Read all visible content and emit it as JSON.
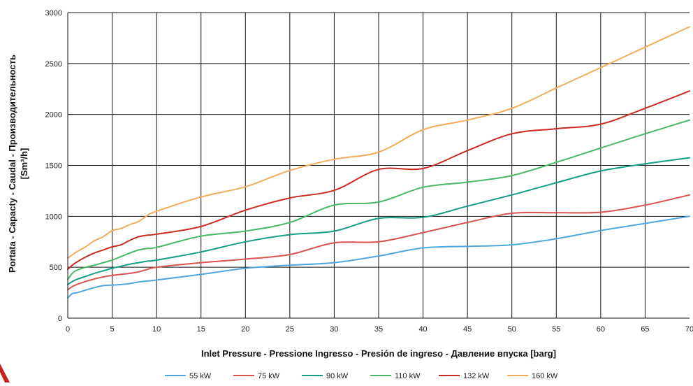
{
  "chart_data": {
    "type": "line",
    "title": "",
    "xlabel": "Inlet Pressure - Pressione Ingresso - Presión de ingreso - Давление впуска [barg]",
    "ylabel_line1": "Portata - Capacty - Caudal - Производительность",
    "ylabel_line2": "[Sm³/h]",
    "xlim": [
      0,
      70
    ],
    "ylim": [
      0,
      3000
    ],
    "x_ticks": [
      0,
      5,
      10,
      15,
      20,
      25,
      30,
      35,
      40,
      45,
      50,
      55,
      60,
      65,
      70
    ],
    "x_tick_labels": [
      "0",
      "5",
      "10",
      "15",
      "20",
      "25",
      "30",
      "35",
      "40",
      "45",
      "50",
      "55",
      "60",
      "65",
      "70"
    ],
    "y_ticks": [
      0,
      500,
      1000,
      1500,
      2000,
      2500,
      3000
    ],
    "y_tick_labels": [
      "0",
      "500",
      "1000",
      "1500",
      "2000",
      "2500",
      "3000"
    ],
    "grid": true,
    "legend_position": "bottom",
    "series": [
      {
        "name": "55 kW",
        "color": "#4ea8de",
        "x": [
          0,
          0.5,
          1,
          2,
          3,
          4,
          5,
          6,
          7,
          8,
          9,
          10,
          15,
          20,
          25,
          30,
          35,
          40,
          45,
          50,
          55,
          60,
          65,
          70
        ],
        "y": [
          200,
          240,
          250,
          275,
          300,
          320,
          325,
          330,
          340,
          355,
          365,
          375,
          430,
          490,
          520,
          545,
          610,
          690,
          705,
          720,
          780,
          860,
          930,
          1000
        ]
      },
      {
        "name": "75 kW",
        "color": "#d9534f",
        "x": [
          0,
          0.5,
          1,
          2,
          3,
          4,
          5,
          6,
          7,
          8,
          9,
          10,
          15,
          20,
          25,
          30,
          35,
          40,
          45,
          50,
          55,
          60,
          65,
          70
        ],
        "y": [
          280,
          310,
          330,
          360,
          385,
          405,
          420,
          430,
          440,
          455,
          480,
          500,
          545,
          580,
          625,
          740,
          750,
          840,
          940,
          1030,
          1035,
          1040,
          1110,
          1210
        ]
      },
      {
        "name": "90 kW",
        "color": "#139e86",
        "x": [
          0,
          0.5,
          1,
          2,
          3,
          4,
          5,
          6,
          7,
          8,
          9,
          10,
          15,
          20,
          25,
          30,
          35,
          40,
          45,
          50,
          55,
          60,
          65,
          70
        ],
        "y": [
          330,
          360,
          380,
          410,
          440,
          465,
          490,
          510,
          530,
          545,
          560,
          570,
          650,
          750,
          820,
          855,
          980,
          990,
          1100,
          1210,
          1330,
          1445,
          1515,
          1575
        ]
      },
      {
        "name": "110 kW",
        "color": "#45b964",
        "x": [
          0,
          0.5,
          1,
          2,
          3,
          4,
          5,
          6,
          7,
          8,
          9,
          10,
          15,
          20,
          25,
          30,
          35,
          40,
          45,
          50,
          55,
          60,
          65,
          70
        ],
        "y": [
          380,
          440,
          470,
          500,
          520,
          545,
          570,
          605,
          640,
          670,
          685,
          695,
          805,
          855,
          940,
          1110,
          1140,
          1285,
          1335,
          1400,
          1530,
          1670,
          1810,
          1945
        ]
      },
      {
        "name": "132 kW",
        "color": "#cc2b21",
        "x": [
          0,
          0.5,
          1,
          2,
          3,
          4,
          5,
          6,
          7,
          8,
          9,
          10,
          15,
          20,
          25,
          30,
          35,
          40,
          45,
          50,
          55,
          60,
          65,
          70
        ],
        "y": [
          480,
          520,
          550,
          600,
          640,
          670,
          700,
          720,
          765,
          800,
          815,
          825,
          900,
          1060,
          1180,
          1255,
          1460,
          1470,
          1645,
          1810,
          1860,
          1905,
          2060,
          2230
        ]
      },
      {
        "name": "160 kW",
        "color": "#f2ad5b",
        "x": [
          0,
          0.5,
          1,
          2,
          3,
          4,
          5,
          6,
          7,
          8,
          9,
          10,
          15,
          20,
          25,
          30,
          35,
          40,
          45,
          50,
          55,
          60,
          65,
          70
        ],
        "y": [
          590,
          620,
          650,
          700,
          760,
          800,
          860,
          880,
          920,
          950,
          1010,
          1050,
          1190,
          1290,
          1450,
          1560,
          1630,
          1850,
          1945,
          2060,
          2260,
          2460,
          2660,
          2860
        ]
      }
    ]
  }
}
